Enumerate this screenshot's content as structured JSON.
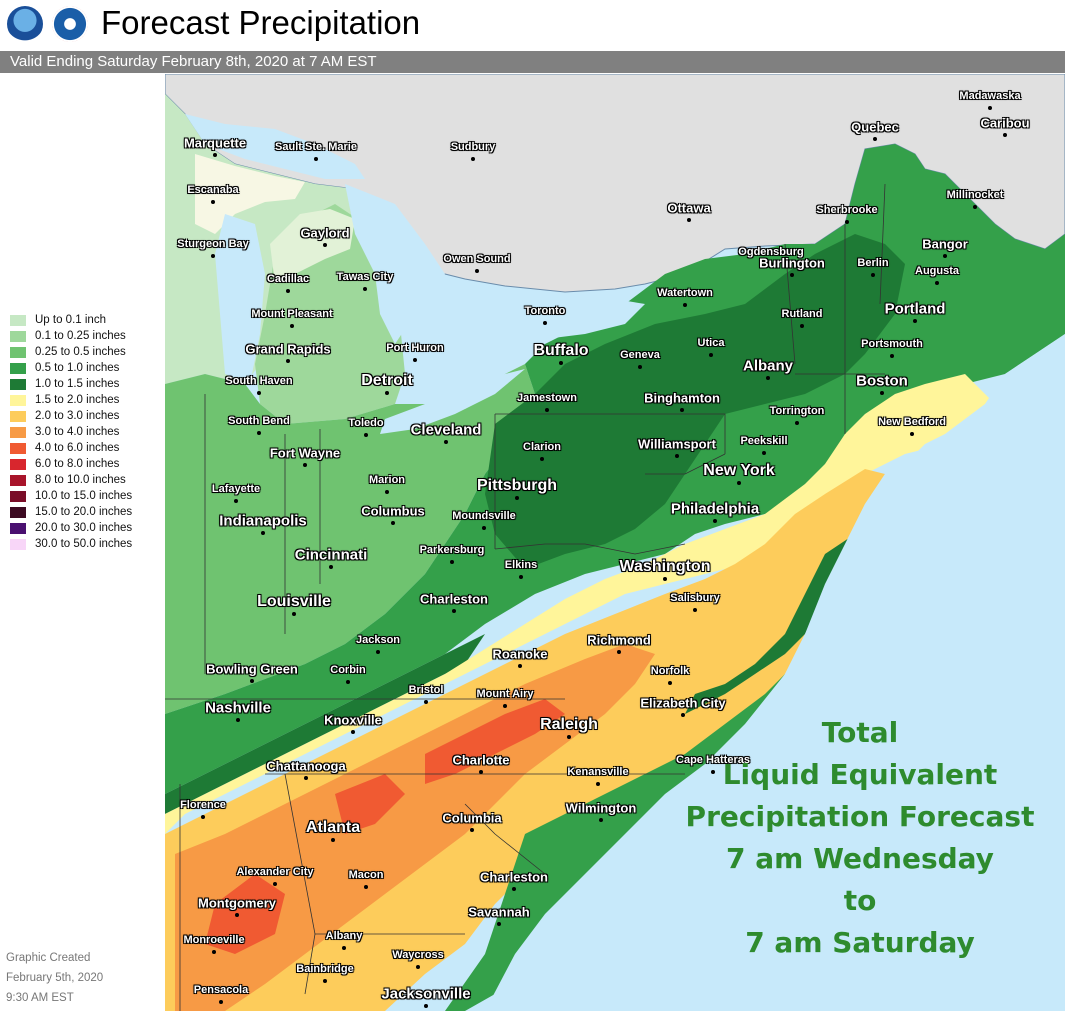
{
  "header": {
    "title": "Forecast Precipitation",
    "subtitle": "Valid Ending Saturday February 8th, 2020 at 7 AM EST",
    "logos": [
      "noaa-logo",
      "nws-logo"
    ]
  },
  "legend": [
    {
      "label": "Up to 0.1 inch",
      "color": "#c6e8c4"
    },
    {
      "label": "0.1 to 0.25 inches",
      "color": "#9ed89b"
    },
    {
      "label": "0.25 to 0.5 inches",
      "color": "#6fc370"
    },
    {
      "label": "0.5 to 1.0 inches",
      "color": "#34a04a"
    },
    {
      "label": "1.0 to 1.5 inches",
      "color": "#1e7a35"
    },
    {
      "label": "1.5 to 2.0 inches",
      "color": "#fff59a"
    },
    {
      "label": "2.0 to 3.0 inches",
      "color": "#fdcc5b"
    },
    {
      "label": "3.0 to 4.0 inches",
      "color": "#f79a45"
    },
    {
      "label": "4.0 to 6.0 inches",
      "color": "#f05a32"
    },
    {
      "label": "6.0 to 8.0 inches",
      "color": "#d8262d"
    },
    {
      "label": "8.0 to 10.0 inches",
      "color": "#a8142a"
    },
    {
      "label": "10.0 to 15.0 inches",
      "color": "#7a0c28"
    },
    {
      "label": "15.0 to 20.0 inches",
      "color": "#3d0a22"
    },
    {
      "label": "20.0 to 30.0 inches",
      "color": "#4a1070"
    },
    {
      "label": "30.0 to 50.0 inches",
      "color": "#f8d6f8"
    }
  ],
  "created": [
    "Graphic Created",
    "February 5th, 2020",
    "9:30 AM EST"
  ],
  "annotation": [
    "Total",
    "Liquid Equivalent",
    "Precipitation Forecast",
    "7 am Wednesday",
    "to",
    "7 am Saturday"
  ],
  "colors": {
    "water": "#c7e9fa",
    "canada_land": "#e0e0e0",
    "annotation": "#2e8b2e"
  },
  "cities": [
    {
      "name": "Marquette",
      "size": "small"
    },
    {
      "name": "Sault Ste. Marie",
      "size": "tiny"
    },
    {
      "name": "Sudbury",
      "size": "tiny"
    },
    {
      "name": "Escanaba",
      "size": "tiny"
    },
    {
      "name": "Gaylord",
      "size": "small"
    },
    {
      "name": "Sturgeon Bay",
      "size": "tiny"
    },
    {
      "name": "Cadillac",
      "size": "tiny"
    },
    {
      "name": "Tawas City",
      "size": "tiny"
    },
    {
      "name": "Owen Sound",
      "size": "tiny"
    },
    {
      "name": "Ottawa",
      "size": "small"
    },
    {
      "name": "Quebec",
      "size": "small"
    },
    {
      "name": "Madawaska",
      "size": "tiny"
    },
    {
      "name": "Caribou",
      "size": "small"
    },
    {
      "name": "Sherbrooke",
      "size": "tiny"
    },
    {
      "name": "Millinocket",
      "size": "tiny"
    },
    {
      "name": "Ogdensburg",
      "size": "tiny"
    },
    {
      "name": "Burlington",
      "size": "small"
    },
    {
      "name": "Berlin",
      "size": "tiny"
    },
    {
      "name": "Bangor",
      "size": "small"
    },
    {
      "name": "Augusta",
      "size": "tiny"
    },
    {
      "name": "Mount Pleasant",
      "size": "tiny"
    },
    {
      "name": "Toronto",
      "size": "tiny"
    },
    {
      "name": "Watertown",
      "size": "tiny"
    },
    {
      "name": "Rutland",
      "size": "tiny"
    },
    {
      "name": "Portland",
      "size": "medium"
    },
    {
      "name": "Grand Rapids",
      "size": "small"
    },
    {
      "name": "Port Huron",
      "size": "tiny"
    },
    {
      "name": "Buffalo",
      "size": "big"
    },
    {
      "name": "Geneva",
      "size": "tiny"
    },
    {
      "name": "Utica",
      "size": "tiny"
    },
    {
      "name": "Portsmouth",
      "size": "tiny"
    },
    {
      "name": "South Haven",
      "size": "tiny"
    },
    {
      "name": "Detroit",
      "size": "big"
    },
    {
      "name": "Albany",
      "size": "medium"
    },
    {
      "name": "Boston",
      "size": "medium"
    },
    {
      "name": "Jamestown",
      "size": "tiny"
    },
    {
      "name": "Binghamton",
      "size": "small"
    },
    {
      "name": "South Bend",
      "size": "tiny"
    },
    {
      "name": "Toledo",
      "size": "tiny"
    },
    {
      "name": "Torrington",
      "size": "tiny"
    },
    {
      "name": "Cleveland",
      "size": "medium"
    },
    {
      "name": "New Bedford",
      "size": "tiny"
    },
    {
      "name": "Peekskill",
      "size": "tiny"
    },
    {
      "name": "Clarion",
      "size": "tiny"
    },
    {
      "name": "Williamsport",
      "size": "small"
    },
    {
      "name": "Fort Wayne",
      "size": "small"
    },
    {
      "name": "New York",
      "size": "big"
    },
    {
      "name": "Marion",
      "size": "tiny"
    },
    {
      "name": "Pittsburgh",
      "size": "big"
    },
    {
      "name": "Lafayette",
      "size": "tiny"
    },
    {
      "name": "Columbus",
      "size": "small"
    },
    {
      "name": "Philadelphia",
      "size": "medium"
    },
    {
      "name": "Moundsville",
      "size": "tiny"
    },
    {
      "name": "Indianapolis",
      "size": "medium"
    },
    {
      "name": "Parkersburg",
      "size": "tiny"
    },
    {
      "name": "Cincinnati",
      "size": "medium"
    },
    {
      "name": "Elkins",
      "size": "tiny"
    },
    {
      "name": "Washington",
      "size": "big"
    },
    {
      "name": "Charleston",
      "size": "small"
    },
    {
      "name": "Salisbury",
      "size": "tiny"
    },
    {
      "name": "Louisville",
      "size": "big"
    },
    {
      "name": "Jackson",
      "size": "tiny"
    },
    {
      "name": "Richmond",
      "size": "small"
    },
    {
      "name": "Roanoke",
      "size": "small"
    },
    {
      "name": "Bowling Green",
      "size": "small"
    },
    {
      "name": "Corbin",
      "size": "tiny"
    },
    {
      "name": "Norfolk",
      "size": "tiny"
    },
    {
      "name": "Bristol",
      "size": "tiny"
    },
    {
      "name": "Mount Airy",
      "size": "tiny"
    },
    {
      "name": "Nashville",
      "size": "medium"
    },
    {
      "name": "Elizabeth City",
      "size": "small"
    },
    {
      "name": "Knoxville",
      "size": "small"
    },
    {
      "name": "Raleigh",
      "size": "big"
    },
    {
      "name": "Cape Hatteras",
      "size": "tiny"
    },
    {
      "name": "Chattanooga",
      "size": "small"
    },
    {
      "name": "Charlotte",
      "size": "small"
    },
    {
      "name": "Kenansville",
      "size": "tiny"
    },
    {
      "name": "Florence",
      "size": "tiny"
    },
    {
      "name": "Wilmington",
      "size": "small"
    },
    {
      "name": "Atlanta",
      "size": "big"
    },
    {
      "name": "Columbia",
      "size": "small"
    },
    {
      "name": "Alexander City",
      "size": "tiny"
    },
    {
      "name": "Macon",
      "size": "tiny"
    },
    {
      "name": "Charleston",
      "size": "small"
    },
    {
      "name": "Montgomery",
      "size": "small"
    },
    {
      "name": "Savannah",
      "size": "small"
    },
    {
      "name": "Monroeville",
      "size": "tiny"
    },
    {
      "name": "Albany",
      "size": "tiny"
    },
    {
      "name": "Bainbridge",
      "size": "tiny"
    },
    {
      "name": "Waycross",
      "size": "tiny"
    },
    {
      "name": "Pensacola",
      "size": "tiny"
    },
    {
      "name": "Jacksonville",
      "size": "medium"
    }
  ]
}
